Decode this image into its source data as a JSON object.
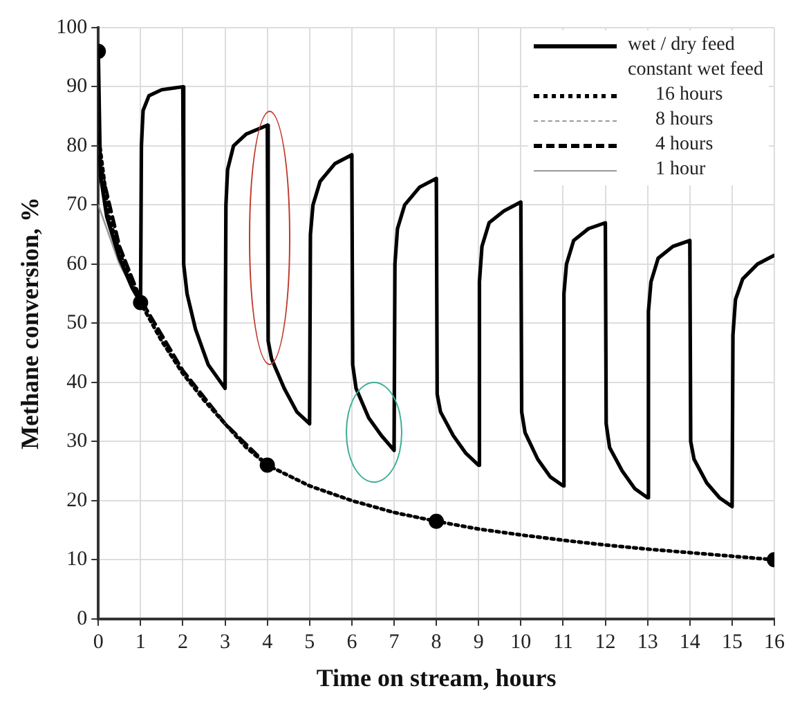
{
  "chart_data": {
    "type": "line",
    "xlabel": "Time on stream, hours",
    "ylabel": "Methane conversion, %",
    "legend_title": "constant wet feed",
    "xlim": [
      0,
      16
    ],
    "xticks": [
      0,
      1,
      2,
      3,
      4,
      5,
      6,
      7,
      8,
      9,
      10,
      11,
      12,
      13,
      14,
      15,
      16
    ],
    "ylim": [
      0,
      100
    ],
    "yticks": [
      0,
      10,
      20,
      30,
      40,
      50,
      60,
      70,
      80,
      90,
      100
    ],
    "grid": true,
    "legend": "top right",
    "marker": "none",
    "series": [
      {
        "name": "wet / dry feed",
        "type": "line",
        "color": "#000000",
        "line_style": "solid",
        "x": [
          0,
          0.05,
          0.2,
          0.5,
          0.8,
          1,
          1.02,
          1.06,
          1.2,
          1.5,
          2,
          2.02,
          2.1,
          2.3,
          2.6,
          3,
          3.02,
          3.06,
          3.2,
          3.5,
          4,
          4.02,
          4.1,
          4.4,
          4.7,
          5,
          5.02,
          5.08,
          5.25,
          5.6,
          6,
          6.02,
          6.1,
          6.4,
          6.7,
          7,
          7.02,
          7.08,
          7.25,
          7.6,
          8,
          8.02,
          8.1,
          8.4,
          8.7,
          9,
          9.02,
          9.08,
          9.25,
          9.6,
          10,
          10.02,
          10.1,
          10.4,
          10.7,
          11,
          11.02,
          11.08,
          11.25,
          11.6,
          12,
          12.02,
          12.1,
          12.4,
          12.7,
          13,
          13.02,
          13.08,
          13.25,
          13.6,
          14,
          14.02,
          14.1,
          14.4,
          14.7,
          15,
          15.02,
          15.08,
          15.25,
          15.6,
          16
        ],
        "values": [
          96,
          75,
          68,
          61,
          56,
          53.5,
          80,
          86,
          88.5,
          89.5,
          90,
          60,
          55,
          49,
          43,
          39,
          70,
          76,
          80,
          82,
          83.5,
          47,
          44,
          39,
          35,
          33,
          65,
          70,
          74,
          77,
          78.5,
          43,
          39,
          34,
          31,
          28.5,
          60,
          66,
          70,
          73,
          74.5,
          38,
          35,
          31,
          28,
          26,
          57,
          63,
          67,
          69,
          70.5,
          35,
          31.5,
          27,
          24,
          22.5,
          55,
          60,
          64,
          66,
          67,
          33,
          29,
          25,
          22,
          20.5,
          52,
          57,
          61,
          63,
          64,
          30,
          27,
          23,
          20.5,
          19,
          48,
          54,
          57.5,
          60,
          61.5
        ]
      },
      {
        "name": "16 hours",
        "type": "line",
        "color": "#000000",
        "line_style": "dotted",
        "x": [
          0,
          0.25,
          0.5,
          1,
          1.5,
          2,
          2.5,
          3,
          3.5,
          4,
          5,
          6,
          7,
          8,
          9,
          10,
          11,
          12,
          13,
          14,
          15,
          16
        ],
        "values": [
          82,
          68,
          62,
          53.5,
          47,
          41.5,
          37,
          33,
          29,
          26,
          22.5,
          20,
          18,
          16.5,
          15.2,
          14.2,
          13.3,
          12.5,
          11.8,
          11.2,
          10.6,
          10
        ]
      },
      {
        "name": "8 hours",
        "type": "line",
        "color": "#999999",
        "line_style": "dashed",
        "x": [
          0,
          0.25,
          0.5,
          1,
          1.5,
          2,
          2.5,
          3,
          3.5,
          4,
          5,
          6,
          7,
          8
        ],
        "values": [
          80,
          67,
          61,
          53.5,
          47,
          41.5,
          37,
          33,
          29,
          26,
          22.5,
          20,
          18,
          16.5
        ]
      },
      {
        "name": "4 hours",
        "type": "line",
        "color": "#000000",
        "line_style": "dashed",
        "x": [
          0,
          0.5,
          1,
          2,
          3,
          4
        ],
        "values": [
          78,
          63,
          54,
          42,
          33,
          26
        ]
      },
      {
        "name": "1 hour",
        "type": "line",
        "color": "#999999",
        "line_style": "solid",
        "x": [
          0,
          0.5,
          1
        ],
        "values": [
          70,
          60,
          53.5
        ]
      },
      {
        "type": "scatter",
        "color": "#000000",
        "marker": "circle",
        "x": [
          0,
          1,
          4,
          8,
          16
        ],
        "values": [
          96,
          53.5,
          26,
          16.5,
          10
        ]
      }
    ]
  }
}
